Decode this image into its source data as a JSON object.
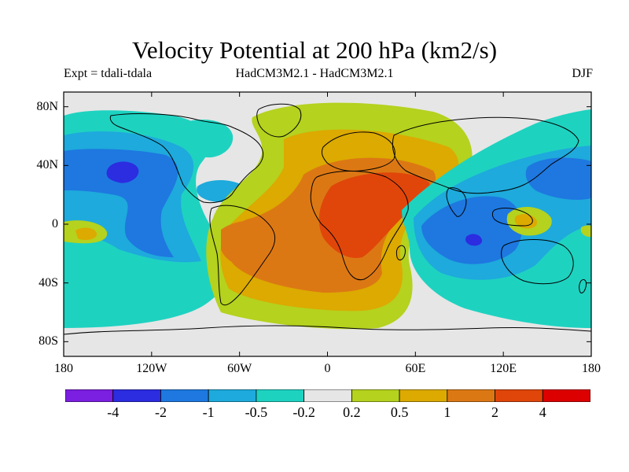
{
  "header": {
    "title": "Velocity Potential at 200 hPa (km2/s)",
    "experiment": "Expt = tdali-tdala",
    "model": "HadCM3M2.1 - HadCM3M2.1",
    "season": "DJF"
  },
  "map": {
    "projection": "cylindrical-equidistant",
    "lon_range": [
      -180,
      180
    ],
    "lat_range": [
      -90,
      90
    ],
    "lat_ticks": [
      {
        "value": 80,
        "label": "80N"
      },
      {
        "value": 40,
        "label": "40N"
      },
      {
        "value": 0,
        "label": "0"
      },
      {
        "value": -40,
        "label": "40S"
      },
      {
        "value": -80,
        "label": "80S"
      }
    ],
    "lon_ticks": [
      {
        "value": -180,
        "label": "180"
      },
      {
        "value": -120,
        "label": "120W"
      },
      {
        "value": -60,
        "label": "60W"
      },
      {
        "value": 0,
        "label": "0"
      },
      {
        "value": 60,
        "label": "60E"
      },
      {
        "value": 120,
        "label": "120E"
      },
      {
        "value": 180,
        "label": "180"
      }
    ]
  },
  "colorbar": {
    "colors": [
      "#7b1fe0",
      "#2c2ce0",
      "#1e78e0",
      "#1eaadc",
      "#1ed2c0",
      "#e6e6e6",
      "#b4d21e",
      "#dcaa00",
      "#dc7814",
      "#e0460a",
      "#dc0000"
    ],
    "labels": [
      "-4",
      "-2",
      "-1",
      "-0.5",
      "-0.2",
      "0.2",
      "0.5",
      "1",
      "2",
      "4"
    ]
  }
}
